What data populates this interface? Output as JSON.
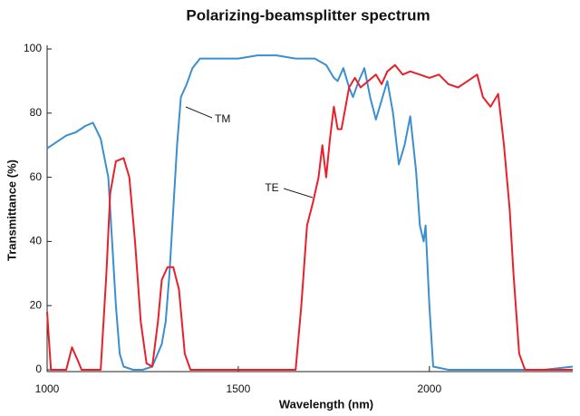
{
  "chart_data": {
    "type": "line",
    "title": "Polarizing-beamsplitter spectrum",
    "x_label": "Wavelength (nm)",
    "y_label": "Transmittance (%)",
    "xlim": [
      1000,
      2375
    ],
    "ylim": [
      0,
      100
    ],
    "xticks": [
      1000,
      1500,
      2000
    ],
    "yticks": [
      0,
      20,
      40,
      60,
      80,
      100
    ],
    "series": [
      {
        "name": "TM",
        "color": "#3a8fd0",
        "x": [
          1000,
          1025,
          1050,
          1075,
          1100,
          1120,
          1140,
          1160,
          1170,
          1180,
          1190,
          1200,
          1225,
          1250,
          1275,
          1300,
          1310,
          1320,
          1330,
          1340,
          1350,
          1365,
          1380,
          1400,
          1450,
          1500,
          1550,
          1600,
          1650,
          1700,
          1730,
          1750,
          1760,
          1775,
          1790,
          1800,
          1815,
          1830,
          1845,
          1860,
          1875,
          1890,
          1905,
          1920,
          1935,
          1950,
          1965,
          1975,
          1985,
          1990,
          2000,
          2010,
          2050,
          2100,
          2200,
          2300,
          2375
        ],
        "values": [
          69,
          71,
          73,
          74,
          76,
          77,
          72,
          60,
          40,
          20,
          5,
          1,
          0,
          0,
          1,
          8,
          15,
          30,
          50,
          70,
          85,
          89,
          94,
          97,
          97,
          97,
          98,
          98,
          97,
          97,
          95,
          91,
          90,
          94,
          88,
          85,
          90,
          94,
          85,
          78,
          84,
          90,
          80,
          64,
          70,
          79,
          62,
          45,
          40,
          45,
          20,
          1,
          0,
          0,
          0,
          0,
          1
        ]
      },
      {
        "name": "TE",
        "color": "#e8202a",
        "x": [
          1000,
          1010,
          1050,
          1065,
          1080,
          1090,
          1140,
          1155,
          1165,
          1180,
          1200,
          1215,
          1230,
          1245,
          1260,
          1275,
          1290,
          1300,
          1315,
          1330,
          1345,
          1360,
          1375,
          1400,
          1500,
          1600,
          1650,
          1665,
          1680,
          1695,
          1710,
          1720,
          1730,
          1740,
          1750,
          1760,
          1770,
          1790,
          1805,
          1820,
          1840,
          1860,
          1875,
          1890,
          1910,
          1930,
          1950,
          1975,
          2000,
          2025,
          2050,
          2075,
          2100,
          2125,
          2140,
          2160,
          2180,
          2195,
          2210,
          2220,
          2235,
          2250,
          2300,
          2375
        ],
        "values": [
          18,
          0,
          0,
          7,
          3,
          0,
          0,
          30,
          55,
          65,
          66,
          60,
          40,
          15,
          2,
          1,
          15,
          28,
          32,
          32,
          25,
          5,
          0,
          0,
          0,
          0,
          0,
          20,
          45,
          52,
          60,
          70,
          60,
          72,
          82,
          75,
          75,
          88,
          91,
          88,
          90,
          92,
          89,
          93,
          95,
          92,
          93,
          92,
          91,
          92,
          89,
          88,
          90,
          92,
          85,
          82,
          86,
          70,
          50,
          30,
          5,
          0,
          0,
          0
        ]
      }
    ]
  }
}
